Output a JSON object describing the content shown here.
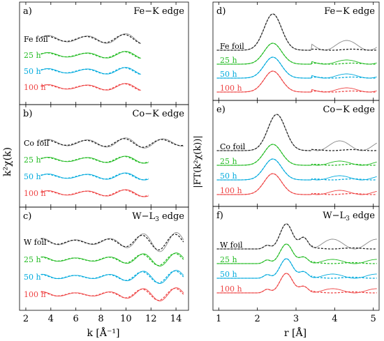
{
  "figure": {
    "left_ylabel": "k²χ(k)",
    "right_ylabel": "|FT(k²χ(k))|",
    "left_xlabel": "k [Å⁻¹]",
    "right_xlabel": "r [Å]"
  },
  "colors": {
    "foil": "#333333",
    "25 h": "#22bb22",
    "50 h": "#00aadd",
    "100 h": "#ee4444"
  },
  "chart_data": [
    {
      "type": "line",
      "panel": "a)",
      "title": "Fe−K edge",
      "x_range": [
        1.5,
        15
      ],
      "x_ticks": [
        2,
        4,
        6,
        8,
        10,
        12,
        14
      ],
      "series": [
        {
          "name": "Fe foil",
          "x": [
            3.2,
            11.2
          ],
          "offset": 0
        },
        {
          "name": "25 h",
          "x": [
            3.2,
            11.2
          ],
          "offset": 1
        },
        {
          "name": "50 h",
          "x": [
            3.2,
            11.2
          ],
          "offset": 2
        },
        {
          "name": "100 h",
          "x": [
            3.2,
            11.2
          ],
          "offset": 3
        }
      ]
    },
    {
      "type": "line",
      "panel": "b)",
      "title": "Co−K edge",
      "x_range": [
        1.5,
        15
      ],
      "x_ticks": [
        2,
        4,
        6,
        8,
        10,
        12,
        14
      ],
      "series": [
        {
          "name": "Co foil",
          "x": [
            3.2,
            14.6
          ],
          "offset": 0
        },
        {
          "name": "25 h",
          "x": [
            3.2,
            11.8
          ],
          "offset": 1
        },
        {
          "name": "50 h",
          "x": [
            3.2,
            11.8
          ],
          "offset": 2
        },
        {
          "name": "100 h",
          "x": [
            3.2,
            11.8
          ],
          "offset": 3
        }
      ]
    },
    {
      "type": "line",
      "panel": "c)",
      "title": "W−L3 edge",
      "x_range": [
        1.5,
        15
      ],
      "x_ticks": [
        2,
        4,
        6,
        8,
        10,
        12,
        14
      ],
      "series": [
        {
          "name": "W foil",
          "x": [
            3.2,
            14.6
          ],
          "offset": 0
        },
        {
          "name": "25 h",
          "x": [
            3.2,
            14.6
          ],
          "offset": 1
        },
        {
          "name": "50 h",
          "x": [
            3.2,
            14.6
          ],
          "offset": 2
        },
        {
          "name": "100 h",
          "x": [
            3.2,
            14.6
          ],
          "offset": 3
        }
      ]
    },
    {
      "type": "line",
      "panel": "d)",
      "title": "Fe−K edge",
      "x_range": [
        0.85,
        5.15
      ],
      "x_ticks": [
        1,
        2,
        3,
        4,
        5
      ],
      "series": [
        {
          "name": "Fe foil",
          "peak_r": 2.2,
          "offset": 0
        },
        {
          "name": "25 h",
          "peak_r": 2.2,
          "offset": 1
        },
        {
          "name": "50 h",
          "peak_r": 2.2,
          "offset": 2
        },
        {
          "name": "100 h",
          "peak_r": 2.2,
          "offset": 3
        }
      ]
    },
    {
      "type": "line",
      "panel": "e)",
      "title": "Co−K edge",
      "x_range": [
        0.85,
        5.15
      ],
      "x_ticks": [
        1,
        2,
        3,
        4,
        5
      ],
      "series": [
        {
          "name": "Co foil",
          "peak_r": 2.15,
          "offset": 0
        },
        {
          "name": "25 h",
          "peak_r": 2.2,
          "offset": 1
        },
        {
          "name": "50 h",
          "peak_r": 2.2,
          "offset": 2
        },
        {
          "name": "100 h",
          "peak_r": 2.2,
          "offset": 3
        }
      ]
    },
    {
      "type": "line",
      "panel": "f)",
      "title": "W−L3 edge",
      "x_range": [
        0.85,
        5.15
      ],
      "x_ticks": [
        1,
        2,
        3,
        4,
        5
      ],
      "series": [
        {
          "name": "W foil",
          "peak_r": 2.75,
          "offset": 0
        },
        {
          "name": "25 h",
          "peak_r": 2.75,
          "offset": 1
        },
        {
          "name": "50 h",
          "peak_r": 2.75,
          "offset": 2
        },
        {
          "name": "100 h",
          "peak_r": 2.75,
          "offset": 3
        }
      ]
    }
  ]
}
